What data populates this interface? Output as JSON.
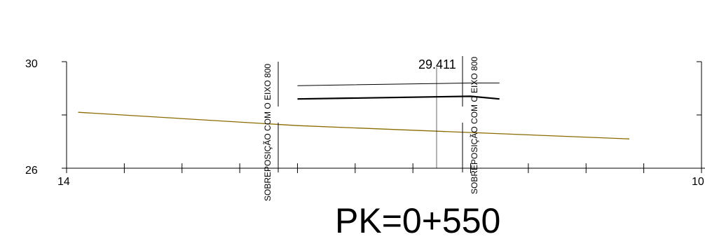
{
  "y_axis": {
    "label_top": "30",
    "label_bottom": "26",
    "range": [
      26,
      30
    ]
  },
  "x_axis": {
    "label_left": "14",
    "label_right_partial": "10",
    "range": [
      14,
      36
    ],
    "tick_step": 2
  },
  "annotations": {
    "overlap_left": "SOBREPOSIÇÃO COM O EIXO 800",
    "overlap_right": "SOBREPOSIÇÃO COM O EIXO 800",
    "elevation_value": "29.411"
  },
  "title": "PK=0+550",
  "colors": {
    "terrain": "#8B6B00",
    "line": "#000000",
    "background": "#ffffff"
  },
  "section": {
    "terrain": [
      [
        14.4,
        28.1
      ],
      [
        22,
        27.6
      ],
      [
        33.5,
        27.1
      ]
    ],
    "upper_profile": [
      [
        22,
        29.1
      ],
      [
        28,
        29.2
      ],
      [
        29,
        29.2
      ]
    ],
    "lower_profile": [
      [
        22,
        28.6
      ],
      [
        28,
        28.7
      ],
      [
        29,
        28.6
      ]
    ],
    "axis_marker_x": 28
  }
}
